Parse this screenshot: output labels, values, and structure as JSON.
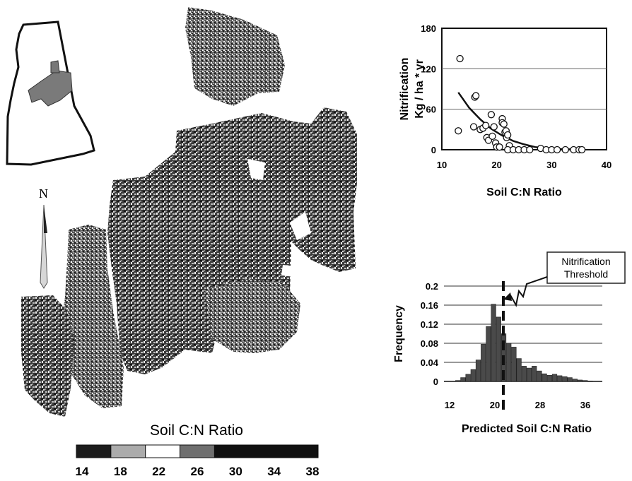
{
  "map": {
    "north_label": "N",
    "legend_title": "Soil C:N Ratio",
    "legend_ticks": [
      "14",
      "18",
      "22",
      "26",
      "30",
      "34",
      "38"
    ],
    "legend_colors": [
      "#1c1c1c",
      "#ababab",
      "#ffffff",
      "#6f6f6f",
      "#101010",
      "#101010",
      "#101010"
    ]
  },
  "annotation": {
    "line1": "Nitrification",
    "line2": "Threshold"
  },
  "chart_data": [
    {
      "type": "scatter",
      "xlabel": "Soil C:N Ratio",
      "ylabel_line1": "Nitrification",
      "ylabel_line2": "Kg / ha * yr",
      "xlim": [
        10,
        40
      ],
      "ylim": [
        0,
        180
      ],
      "x_ticks": [
        "10",
        "20",
        "30",
        "40"
      ],
      "y_ticks": [
        "0",
        "60",
        "120",
        "180"
      ],
      "grid": true,
      "points": [
        [
          13.3,
          135
        ],
        [
          13.0,
          28
        ],
        [
          16.0,
          78
        ],
        [
          16.2,
          80
        ],
        [
          15.8,
          34
        ],
        [
          17.0,
          30
        ],
        [
          17.5,
          32
        ],
        [
          18.0,
          36
        ],
        [
          18.2,
          18
        ],
        [
          18.5,
          14
        ],
        [
          19.0,
          52
        ],
        [
          19.2,
          20
        ],
        [
          19.5,
          34
        ],
        [
          19.8,
          10
        ],
        [
          20.0,
          4
        ],
        [
          20.5,
          4
        ],
        [
          21.0,
          46
        ],
        [
          21.0,
          40
        ],
        [
          21.3,
          38
        ],
        [
          21.5,
          26
        ],
        [
          21.7,
          28
        ],
        [
          21.8,
          18
        ],
        [
          22.0,
          22
        ],
        [
          22.3,
          6
        ],
        [
          22.0,
          0
        ],
        [
          23.0,
          0
        ],
        [
          24.0,
          0
        ],
        [
          25.0,
          0
        ],
        [
          26.0,
          0
        ],
        [
          28.0,
          2
        ],
        [
          29.0,
          0
        ],
        [
          30.0,
          0
        ],
        [
          31.0,
          0
        ],
        [
          32.5,
          0
        ],
        [
          34.0,
          0
        ],
        [
          35.0,
          0
        ],
        [
          35.5,
          0
        ]
      ],
      "fit_curve": [
        [
          13.0,
          85
        ],
        [
          15.0,
          62
        ],
        [
          17.0,
          45
        ],
        [
          19.0,
          31
        ],
        [
          21.0,
          21
        ],
        [
          23.0,
          13
        ],
        [
          25.0,
          8
        ],
        [
          27.0,
          4
        ],
        [
          29.0,
          2
        ],
        [
          31.0,
          1
        ],
        [
          34.0,
          0.5
        ],
        [
          36.0,
          0.3
        ]
      ]
    },
    {
      "type": "bar",
      "xlabel": "Predicted Soil C:N Ratio",
      "ylabel": "Frequency",
      "xlim": [
        11,
        39
      ],
      "ylim": [
        0,
        0.2
      ],
      "x_ticks": [
        "12",
        "20",
        "28",
        "36"
      ],
      "y_ticks": [
        "0",
        "0.04",
        "0.08",
        "0.12",
        "0.16",
        "0.2"
      ],
      "grid": true,
      "bin_width": 0.9,
      "threshold": 21.5,
      "bins": [
        [
          13.5,
          0.002
        ],
        [
          14.4,
          0.008
        ],
        [
          15.3,
          0.015
        ],
        [
          16.2,
          0.025
        ],
        [
          17.1,
          0.045
        ],
        [
          18.0,
          0.078
        ],
        [
          18.9,
          0.115
        ],
        [
          19.8,
          0.162
        ],
        [
          20.7,
          0.135
        ],
        [
          21.6,
          0.1
        ],
        [
          22.5,
          0.08
        ],
        [
          23.4,
          0.072
        ],
        [
          24.3,
          0.048
        ],
        [
          25.2,
          0.032
        ],
        [
          26.1,
          0.028
        ],
        [
          27.0,
          0.032
        ],
        [
          27.9,
          0.022
        ],
        [
          28.8,
          0.016
        ],
        [
          29.7,
          0.013
        ],
        [
          30.6,
          0.015
        ],
        [
          31.5,
          0.012
        ],
        [
          32.4,
          0.01
        ],
        [
          33.3,
          0.008
        ],
        [
          34.2,
          0.005
        ],
        [
          35.1,
          0.003
        ],
        [
          36.0,
          0.002
        ],
        [
          36.9,
          0.001
        ]
      ]
    }
  ]
}
